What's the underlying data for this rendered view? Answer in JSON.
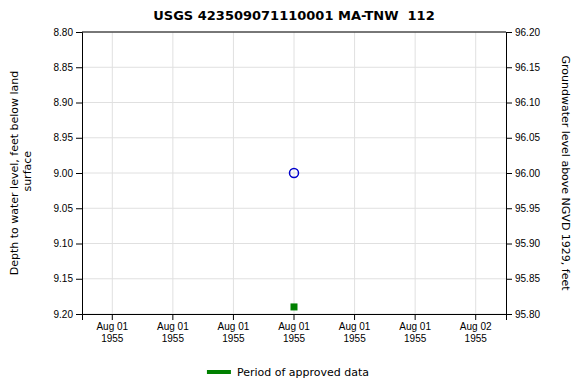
{
  "chart_data": {
    "type": "scatter",
    "title": "USGS 423509071110001 MA-TNW  112",
    "y_label": "Depth to water level, feet below land\n surface",
    "y2_label": "Groundwater level above NGVD 1929, feet",
    "categories": [
      "Aug 01\n1955",
      "Aug 01\n1955",
      "Aug 01\n1955",
      "Aug 01\n1955",
      "Aug 01\n1955",
      "Aug 01\n1955",
      "Aug 02\n1955"
    ],
    "ylim": [
      9.2,
      8.8
    ],
    "yticks": [
      {
        "value": 8.8,
        "label": "8.80"
      },
      {
        "value": 8.85,
        "label": "8.85"
      },
      {
        "value": 8.9,
        "label": "8.90"
      },
      {
        "value": 8.95,
        "label": "8.95"
      },
      {
        "value": 9.0,
        "label": "9.00"
      },
      {
        "value": 9.05,
        "label": "9.05"
      },
      {
        "value": 9.1,
        "label": "9.10"
      },
      {
        "value": 9.15,
        "label": "9.15"
      },
      {
        "value": 9.2,
        "label": "9.20"
      }
    ],
    "y2lim": [
      95.8,
      96.2
    ],
    "y2ticks": [
      {
        "value": 96.2,
        "label": "96.20"
      },
      {
        "value": 96.15,
        "label": "96.15"
      },
      {
        "value": 96.1,
        "label": "96.10"
      },
      {
        "value": 96.05,
        "label": "96.05"
      },
      {
        "value": 96.0,
        "label": "96.00"
      },
      {
        "value": 95.95,
        "label": "95.95"
      },
      {
        "value": 95.9,
        "label": "95.90"
      },
      {
        "value": 95.85,
        "label": "95.85"
      },
      {
        "value": 95.8,
        "label": "95.80"
      }
    ],
    "series": [
      {
        "color": "#0000cc",
        "marker": "circle-open",
        "values": [
          null,
          null,
          null,
          9.0,
          null,
          null,
          null
        ]
      },
      {
        "name": "Period of approved data",
        "color": "#008000",
        "marker": "square",
        "values": [
          null,
          null,
          null,
          9.19,
          null,
          null,
          null
        ]
      }
    ],
    "grid": true,
    "legend": "bottom"
  }
}
